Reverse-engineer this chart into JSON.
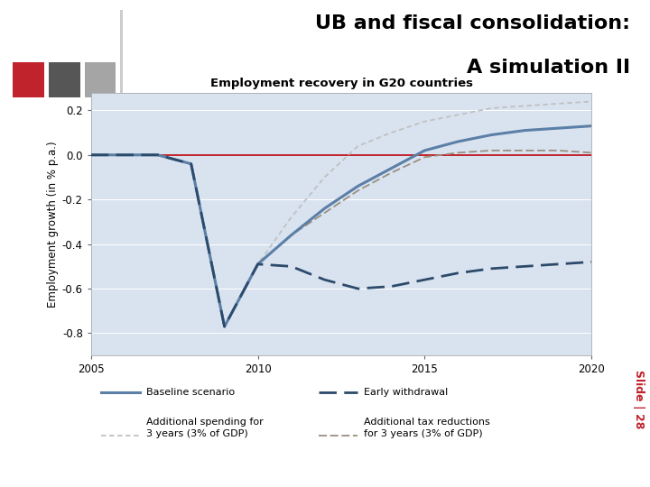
{
  "title_line1": "UB and fiscal consolidation:",
  "title_line2": "A simulation II",
  "chart_title": "Employment recovery in G20 countries",
  "ylabel": "Employment growth (in % p.a.)",
  "slide_label": "Slide | 28",
  "red_sq": "#c0232c",
  "dark_sq": "#565656",
  "light_sq": "#a5a5a5",
  "plot_bg": "#d9e3f0",
  "years": [
    2005,
    2006,
    2007,
    2008,
    2009,
    2010,
    2011,
    2012,
    2013,
    2014,
    2015,
    2016,
    2017,
    2018,
    2019,
    2020
  ],
  "baseline": [
    0.0,
    0.0,
    0.0,
    -0.04,
    -0.77,
    -0.49,
    -0.36,
    -0.24,
    -0.14,
    -0.06,
    0.02,
    0.06,
    0.09,
    0.11,
    0.12,
    0.13
  ],
  "early_withdrawal": [
    0.0,
    0.0,
    0.0,
    -0.04,
    -0.77,
    -0.49,
    -0.5,
    -0.56,
    -0.6,
    -0.59,
    -0.56,
    -0.53,
    -0.51,
    -0.5,
    -0.49,
    -0.48
  ],
  "add_spending": [
    0.0,
    0.0,
    0.0,
    -0.04,
    -0.77,
    -0.49,
    -0.28,
    -0.1,
    0.04,
    0.1,
    0.15,
    0.18,
    0.21,
    0.22,
    0.23,
    0.24
  ],
  "add_tax": [
    0.0,
    0.0,
    0.0,
    -0.04,
    -0.77,
    -0.49,
    -0.36,
    -0.26,
    -0.16,
    -0.08,
    -0.01,
    0.01,
    0.02,
    0.02,
    0.02,
    0.01
  ],
  "xlim": [
    2005,
    2020
  ],
  "ylim": [
    -0.9,
    0.28
  ],
  "yticks": [
    -0.8,
    -0.6,
    -0.4,
    -0.2,
    0.0,
    0.2
  ],
  "xticks": [
    2005,
    2010,
    2015,
    2020
  ],
  "baseline_color": "#5b7fa6",
  "early_color": "#2c4a6a",
  "spending_color": "#c0c0c0",
  "tax_color": "#9a9080",
  "zero_line_color": "#c0232c"
}
